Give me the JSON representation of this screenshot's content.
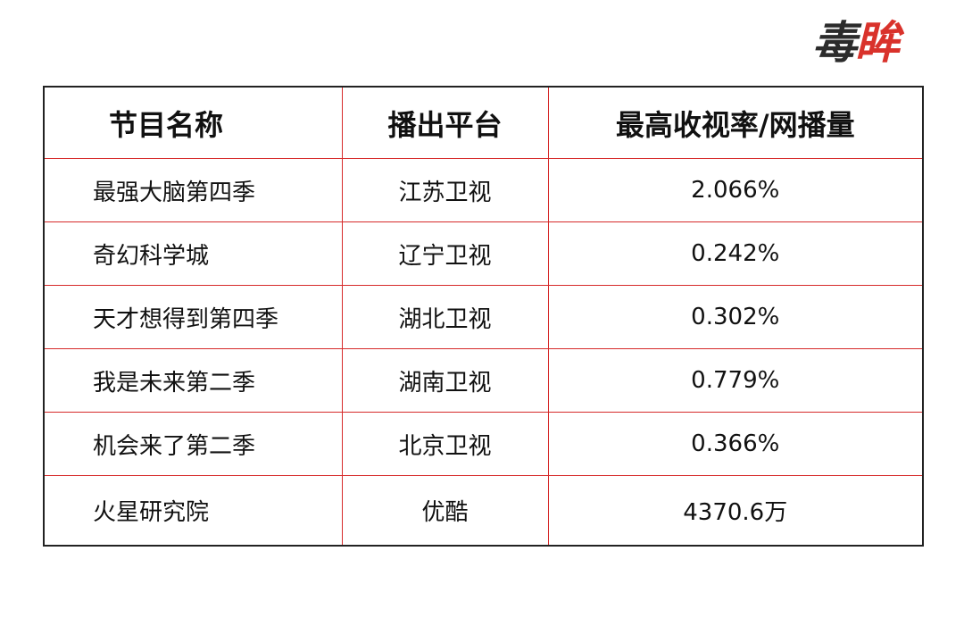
{
  "logo": {
    "text": "毒眸",
    "part1": "毒",
    "part2": "眸"
  },
  "colors": {
    "grid_line": "#d62a2a",
    "outer_border": "#222222",
    "logo_accent": "#d9322b"
  },
  "table": {
    "headers": [
      "节目名称",
      "播出平台",
      "最高收视率/网播量"
    ],
    "rows": [
      [
        "最强大脑第四季",
        "江苏卫视",
        "2.066%"
      ],
      [
        "奇幻科学城",
        "辽宁卫视",
        "0.242%"
      ],
      [
        "天才想得到第四季",
        "湖北卫视",
        "0.302%"
      ],
      [
        "我是未来第二季",
        "湖南卫视",
        "0.779%"
      ],
      [
        "机会来了第二季",
        "北京卫视",
        "0.366%"
      ],
      [
        "火星研究院",
        "优酷",
        "4370.6万"
      ]
    ]
  }
}
